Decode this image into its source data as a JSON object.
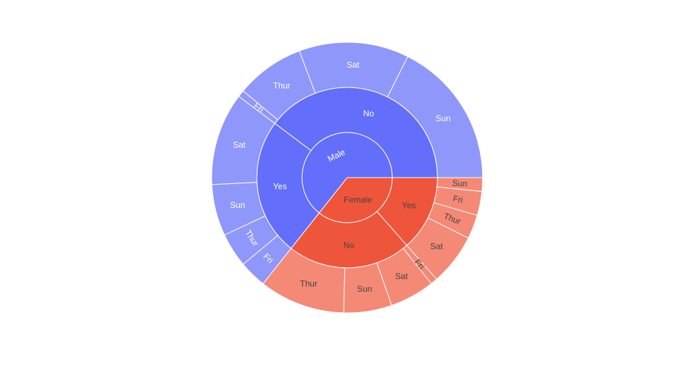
{
  "chart_data": {
    "type": "sunburst",
    "title": "",
    "palette": {
      "Male": {
        "sex": "#636efa",
        "smoker": "#636efa",
        "day": "#8f97fb"
      },
      "Female": {
        "sex": "#ef553b",
        "smoker": "#ef553b",
        "day": "#f48976"
      }
    },
    "label_colors": {
      "Male": "#ffffff",
      "Female": "#444444"
    },
    "hierarchy": [
      {
        "name": "Male",
        "value": 157,
        "children": [
          {
            "name": "No",
            "value": 97,
            "children": [
              {
                "name": "Sun",
                "value": 43
              },
              {
                "name": "Sat",
                "value": 32
              },
              {
                "name": "Thur",
                "value": 20
              },
              {
                "name": "Fri",
                "value": 2
              }
            ]
          },
          {
            "name": "Yes",
            "value": 60,
            "children": [
              {
                "name": "Sat",
                "value": 27
              },
              {
                "name": "Sun",
                "value": 15
              },
              {
                "name": "Thur",
                "value": 10
              },
              {
                "name": "Fri",
                "value": 8
              }
            ]
          }
        ]
      },
      {
        "name": "Female",
        "value": 87,
        "children": [
          {
            "name": "No",
            "value": 54,
            "children": [
              {
                "name": "Thur",
                "value": 25
              },
              {
                "name": "Sun",
                "value": 14
              },
              {
                "name": "Sat",
                "value": 13
              },
              {
                "name": "Fri",
                "value": 2
              }
            ]
          },
          {
            "name": "Yes",
            "value": 33,
            "children": [
              {
                "name": "Sat",
                "value": 15
              },
              {
                "name": "Thur",
                "value": 7
              },
              {
                "name": "Fri",
                "value": 7
              },
              {
                "name": "Sun",
                "value": 4
              }
            ]
          }
        ]
      }
    ]
  }
}
